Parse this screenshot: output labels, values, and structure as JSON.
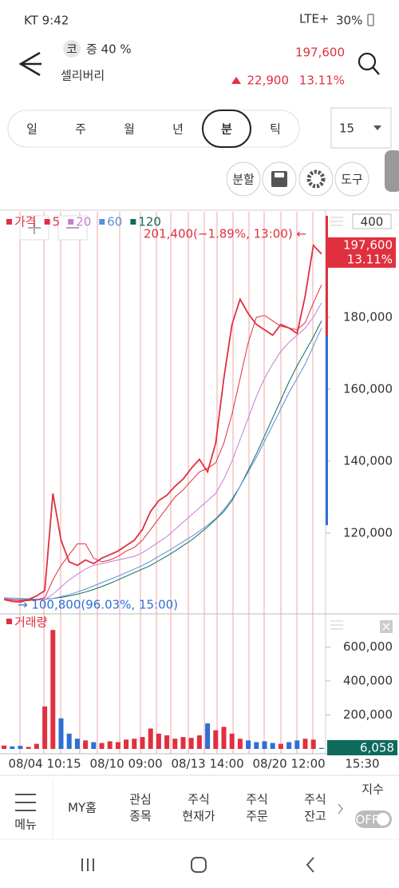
{
  "status_bar": {
    "left": "KT 9:42",
    "network": "LTE+",
    "battery": "30%"
  },
  "header": {
    "market_badge": "코",
    "margin_rate": "증 40 %",
    "stock_name": "셀리버리",
    "price": "197,600",
    "change": "22,900",
    "change_rate": "13.11%"
  },
  "period_tabs": {
    "items": [
      "일",
      "주",
      "월",
      "년",
      "분",
      "틱"
    ],
    "selected": 4
  },
  "interval": "15",
  "tool_buttons": {
    "split": "분할",
    "tools": "도구"
  },
  "chart_data": {
    "type": "line",
    "categories": [
      null,
      null,
      null,
      null,
      null,
      "08/04 10:15",
      null,
      null,
      null,
      null,
      null,
      null,
      null,
      null,
      null,
      "08/10 09:00",
      null,
      null,
      null,
      null,
      null,
      null,
      null,
      null,
      null,
      "08/13 14:00",
      null,
      null,
      null,
      null,
      null,
      null,
      null,
      null,
      null,
      "08/20 12:00",
      null,
      null,
      null,
      null
    ],
    "series": [
      {
        "name": "가격",
        "color": "#e0303f",
        "values": [
          101500,
          101000,
          100800,
          101500,
          102500,
          104000,
          131000,
          118000,
          112000,
          111000,
          112500,
          111500,
          113000,
          114000,
          115000,
          116500,
          118000,
          121000,
          126000,
          129000,
          130500,
          133000,
          135000,
          138000,
          140500,
          137000,
          145000,
          163000,
          178000,
          185000,
          181000,
          178000,
          176500,
          175000,
          178000,
          177000,
          175500,
          186000,
          200000,
          197600
        ]
      },
      {
        "name": "5",
        "color": "#e0303f",
        "values": [
          101600,
          101400,
          101200,
          101200,
          101500,
          102000,
          107000,
          111000,
          114000,
          117000,
          117000,
          113000,
          112000,
          112500,
          113500,
          115000,
          116000,
          118000,
          121000,
          124000,
          127000,
          130000,
          132000,
          134500,
          137000,
          138000,
          139500,
          145000,
          153000,
          163000,
          173000,
          180000,
          180500,
          179000,
          177500,
          177000,
          176500,
          178500,
          184000,
          189000
        ]
      },
      {
        "name": "20",
        "color": "#c77dd6",
        "values": [
          101800,
          101600,
          101400,
          101300,
          101300,
          101500,
          103000,
          105000,
          107000,
          108500,
          110000,
          111000,
          111500,
          112000,
          112500,
          113000,
          113500,
          114500,
          116000,
          117500,
          119000,
          121000,
          123000,
          125000,
          127000,
          129000,
          131000,
          135000,
          140000,
          146000,
          152000,
          158000,
          163000,
          167000,
          170500,
          173000,
          175000,
          177000,
          180000,
          184000
        ]
      },
      {
        "name": "60",
        "color": "#5b8fd9",
        "values": [
          102000,
          101900,
          101800,
          101700,
          101600,
          101600,
          101800,
          102300,
          102900,
          103600,
          104400,
          105300,
          106200,
          107100,
          108000,
          109000,
          110000,
          111000,
          112200,
          113500,
          114800,
          116200,
          117600,
          119000,
          120500,
          122200,
          124000,
          126500,
          129500,
          133000,
          137000,
          141000,
          145500,
          150000,
          154500,
          159000,
          163000,
          167000,
          172000,
          177000
        ]
      },
      {
        "name": "120",
        "color": "#0e6b5c",
        "values": [
          101500,
          101500,
          101500,
          101500,
          101500,
          101600,
          101800,
          102100,
          102500,
          103000,
          103600,
          104300,
          105100,
          106000,
          107000,
          108000,
          109000,
          110000,
          111000,
          112300,
          113600,
          115000,
          116500,
          118000,
          119800,
          121700,
          123800,
          126000,
          129000,
          133000,
          137500,
          142000,
          147000,
          152000,
          157000,
          162000,
          166500,
          170500,
          174500,
          179000
        ]
      }
    ],
    "ylim": [
      98200,
      209300
    ],
    "yticks": [
      {
        "value": 120000,
        "label": "120,000"
      },
      {
        "value": 140000,
        "label": "140,000"
      },
      {
        "value": 160000,
        "label": "160,000"
      },
      {
        "value": 180000,
        "label": "180,000"
      }
    ],
    "annotations": {
      "high": "201,400(−1.89%, 13:00) ←",
      "low": "→ 100,800(96.03%, 15:00)"
    },
    "price_tag": {
      "price": "197,600",
      "change_rate": "13.11%"
    },
    "scale_box": "400",
    "time_label": "15:30",
    "volume": {
      "title": "거래량",
      "up_color": "#e0303f",
      "down_color": "#2e6fd6",
      "values": [
        20000,
        15000,
        18000,
        12000,
        30000,
        250000,
        700000,
        180000,
        90000,
        60000,
        50000,
        40000,
        35000,
        45000,
        40000,
        55000,
        60000,
        70000,
        120000,
        90000,
        80000,
        60000,
        70000,
        65000,
        80000,
        150000,
        110000,
        130000,
        90000,
        60000,
        50000,
        40000,
        45000,
        35000,
        30000,
        40000,
        50000,
        60000,
        55000,
        6058
      ],
      "ylim": [
        0,
        762000
      ],
      "yticks": [
        {
          "value": 200000,
          "label": "200,000"
        },
        {
          "value": 400000,
          "label": "400,000"
        },
        {
          "value": 600000,
          "label": "600,000"
        }
      ],
      "last_label": "6,058"
    }
  },
  "bottom_nav": {
    "menu": "메뉴",
    "items": [
      {
        "lines": [
          "MY홈"
        ]
      },
      {
        "lines": [
          "관심",
          "종목"
        ]
      },
      {
        "lines": [
          "주식",
          "현재가"
        ]
      },
      {
        "lines": [
          "주식",
          "주문"
        ]
      },
      {
        "lines": [
          "주식",
          "잔고"
        ]
      }
    ],
    "index_label": "지수",
    "toggle": "OFF"
  }
}
